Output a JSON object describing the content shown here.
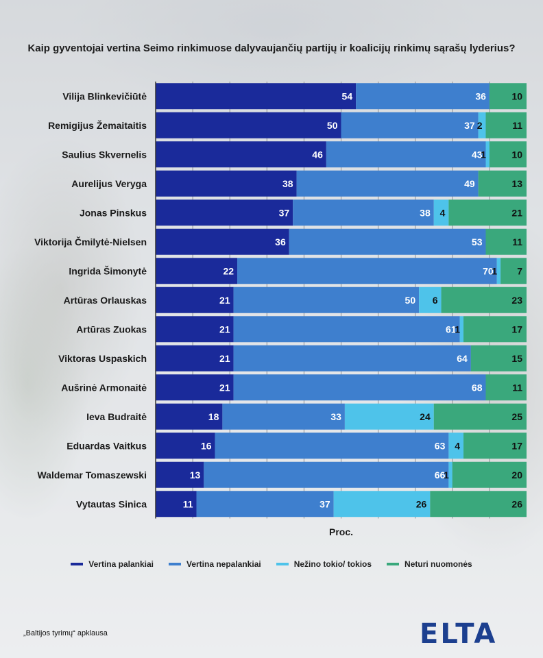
{
  "source_note": "„Baltijos tyrimų“ apklausa",
  "logo_text": "ELTA",
  "chart_data": {
    "type": "bar",
    "orientation": "horizontal",
    "stacked": true,
    "title": "Kaip gyventojai vertina Seimo rinkimuose dalyvaujančių partijų ir koalicijų rinkimų sąrašų lyderius?",
    "xlabel": "Proc.",
    "ylabel": "",
    "xlim": [
      0,
      100
    ],
    "legend_position": "bottom",
    "grid": true,
    "categories": [
      "Vilija Blinkevičiūtė",
      "Remigijus Žemaitaitis",
      "Saulius Skvernelis",
      "Aurelijus Veryga",
      "Jonas Pinskus",
      "Viktorija Čmilytė-Nielsen",
      "Ingrida Šimonytė",
      "Artūras Orlauskas",
      "Artūras Zuokas",
      "Viktoras Uspaskich",
      "Aušrinė Armonaitė",
      "Ieva Budraitė",
      "Eduardas Vaitkus",
      "Waldemar Tomaszewski",
      "Vytautas Sinica"
    ],
    "series": [
      {
        "name": "Vertina palankiai",
        "color": "#1a2a9a",
        "values": [
          54,
          50,
          46,
          38,
          37,
          36,
          22,
          21,
          21,
          21,
          21,
          18,
          16,
          13,
          11
        ]
      },
      {
        "name": "Vertina nepalankiai",
        "color": "#3e7fce",
        "values": [
          36,
          37,
          43,
          49,
          38,
          53,
          70,
          50,
          61,
          64,
          68,
          33,
          63,
          66,
          37
        ]
      },
      {
        "name": "Nežino tokio/ tokios",
        "color": "#4ec3ea",
        "values": [
          0,
          2,
          1,
          0,
          4,
          0,
          1,
          6,
          1,
          0,
          0,
          24,
          4,
          1,
          26
        ]
      },
      {
        "name": "Neturi nuomonės",
        "color": "#3aa87c",
        "values": [
          10,
          11,
          10,
          13,
          21,
          11,
          7,
          23,
          17,
          15,
          11,
          25,
          17,
          20,
          26
        ]
      }
    ]
  }
}
